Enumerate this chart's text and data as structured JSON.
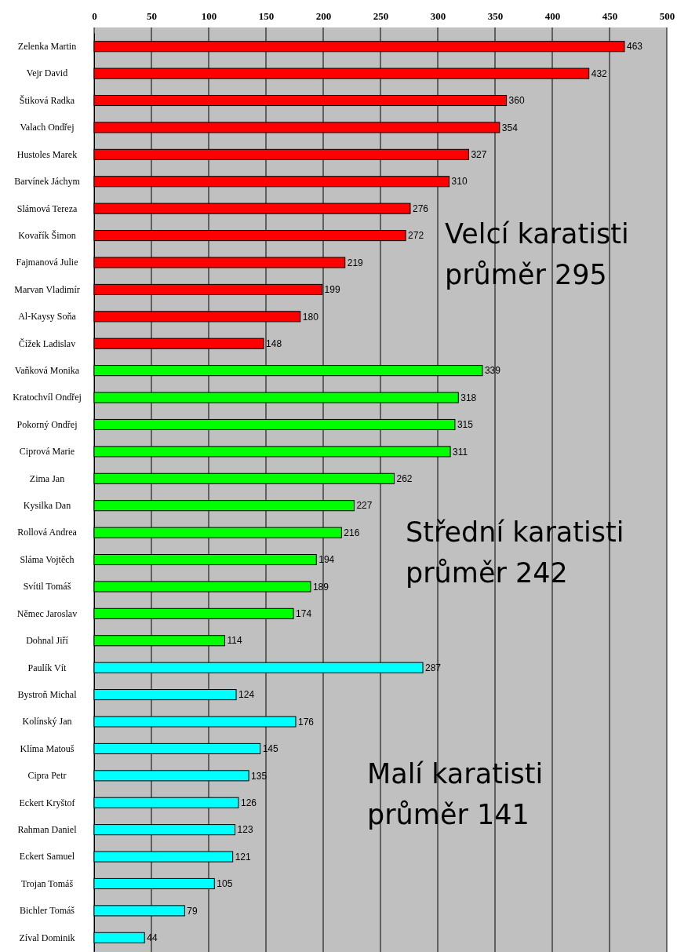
{
  "chart_data": {
    "type": "bar",
    "orientation": "horizontal",
    "categories": [
      "Zelenka Martin",
      "Vejr David",
      "Štiková Radka",
      "Valach Ondřej",
      "Hustoles Marek",
      "Barvínek Jáchym",
      "Slámová Tereza",
      "Kovařík Šimon",
      "Fajmanová Julie",
      "Marvan Vladimír",
      "Al-Kaysy Soňa",
      "Čížek Ladislav",
      "Vaňková Monika",
      "Kratochvíl Ondřej",
      "Pokorný Ondřej",
      "Ciprová Marie",
      "Zima Jan",
      "Kysilka Dan",
      "Rollová Andrea",
      "Sláma Vojtěch",
      "Svítil Tomáš",
      "Němec Jaroslav",
      "Dohnal Jiří",
      "Paulík Vít",
      "Bystroň Michal",
      "Kolínský Jan",
      "Klíma Matouš",
      "Cipra Petr",
      "Eckert Kryštof",
      "Rahman Daniel",
      "Eckert Samuel",
      "Trojan Tomáš",
      "Bichler Tomáš",
      "Zíval Dominik"
    ],
    "values": [
      463,
      432,
      360,
      354,
      327,
      310,
      276,
      272,
      219,
      199,
      180,
      148,
      339,
      318,
      315,
      311,
      262,
      227,
      216,
      194,
      189,
      174,
      114,
      287,
      124,
      176,
      145,
      135,
      126,
      123,
      121,
      105,
      79,
      44
    ],
    "colors": [
      "#ff0000",
      "#ff0000",
      "#ff0000",
      "#ff0000",
      "#ff0000",
      "#ff0000",
      "#ff0000",
      "#ff0000",
      "#ff0000",
      "#ff0000",
      "#ff0000",
      "#ff0000",
      "#00ff00",
      "#00ff00",
      "#00ff00",
      "#00ff00",
      "#00ff00",
      "#00ff00",
      "#00ff00",
      "#00ff00",
      "#00ff00",
      "#00ff00",
      "#00ff00",
      "#00ffff",
      "#00ffff",
      "#00ffff",
      "#00ffff",
      "#00ffff",
      "#00ffff",
      "#00ffff",
      "#00ffff",
      "#00ffff",
      "#00ffff",
      "#00ffff"
    ],
    "xlim": [
      0,
      500
    ],
    "xticks": [
      0,
      50,
      100,
      150,
      200,
      250,
      300,
      350,
      400,
      450,
      500
    ],
    "grid": "x",
    "data_labels": true,
    "annotations": [
      "Velcí karatisti\nprůměr 295",
      "Střední karatisti\nprůměr 242",
      "Malí karatisti\nprůměr 141"
    ]
  }
}
